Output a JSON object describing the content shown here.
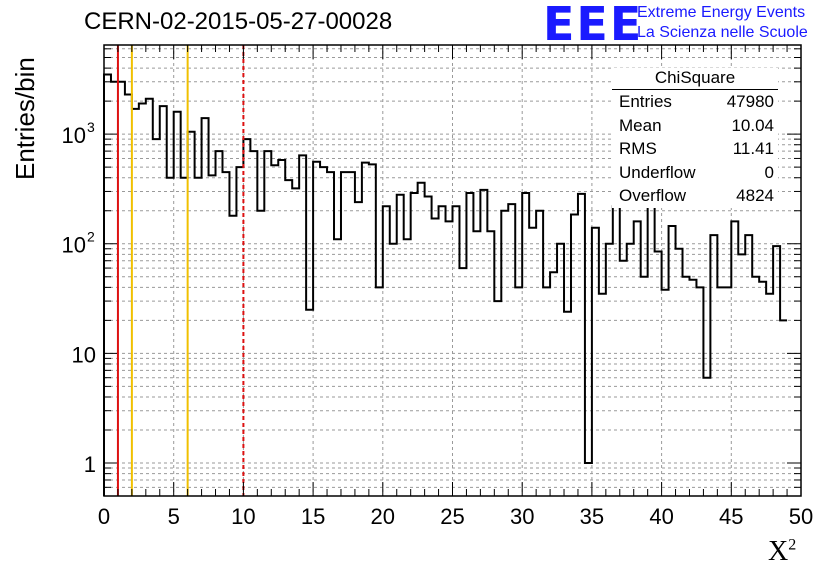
{
  "header": {
    "title": "CERN-02-2015-05-27-00028",
    "logo_text": "EEE",
    "brand_line1": "Extreme Energy Events",
    "brand_line2": "La Scienza nelle Scuole"
  },
  "stats_box": {
    "name": "ChiSquare",
    "rows": [
      {
        "label": "Entries",
        "value": "47980"
      },
      {
        "label": "Mean",
        "value": "10.04"
      },
      {
        "label": "RMS",
        "value": "11.41"
      },
      {
        "label": "Underflow",
        "value": "0"
      },
      {
        "label": "Overflow",
        "value": "4824"
      }
    ]
  },
  "colors": {
    "histogram": "#000000",
    "grid": "#9a9a9a",
    "line_red": "#dd1111",
    "line_yellow": "#f0c000",
    "dashed_red": "#dd1111",
    "brand": "#1a1aff"
  },
  "chart_data": {
    "type": "histogram",
    "title": "CERN-02-2015-05-27-00028",
    "xlabel_main": "X",
    "xlabel_sup": "2",
    "ylabel": "Entries/bin",
    "xlim": [
      0,
      50
    ],
    "ylim": [
      0.5,
      6500
    ],
    "y_scale": "log",
    "grid": true,
    "bin_width": 0.5,
    "x_ticks": [
      0,
      5,
      10,
      15,
      20,
      25,
      30,
      35,
      40,
      45,
      50
    ],
    "y_ticks": [
      {
        "value": 1,
        "label": "1"
      },
      {
        "value": 10,
        "label": "10"
      },
      {
        "value": 100,
        "label": "10",
        "exp": "2"
      },
      {
        "value": 1000,
        "label": "10",
        "exp": "3"
      }
    ],
    "vertical_lines": [
      {
        "x": 1,
        "color": "#dd1111",
        "style": "solid"
      },
      {
        "x": 2,
        "color": "#f0c000",
        "style": "solid"
      },
      {
        "x": 6,
        "color": "#f0c000",
        "style": "solid"
      },
      {
        "x": 10,
        "color": "#dd1111",
        "style": "dashed"
      }
    ],
    "bin_values": [
      3500,
      3000,
      3000,
      2300,
      1700,
      1900,
      2100,
      900,
      1800,
      400,
      1600,
      400,
      1050,
      400,
      1400,
      420,
      700,
      450,
      180,
      500,
      900,
      700,
      200,
      700,
      520,
      580,
      380,
      320,
      640,
      25,
      560,
      500,
      450,
      110,
      450,
      450,
      240,
      550,
      530,
      40,
      220,
      100,
      280,
      110,
      290,
      360,
      270,
      170,
      220,
      160,
      220,
      60,
      290,
      130,
      310,
      130,
      30,
      200,
      230,
      40,
      290,
      140,
      200,
      40,
      55,
      100,
      24,
      185,
      285,
      1,
      140,
      35,
      100,
      220,
      70,
      100,
      160,
      50,
      240,
      85,
      38,
      145,
      90,
      50,
      47,
      40,
      6,
      120,
      40,
      40,
      160,
      80,
      120,
      50,
      45,
      35,
      95,
      20
    ]
  }
}
